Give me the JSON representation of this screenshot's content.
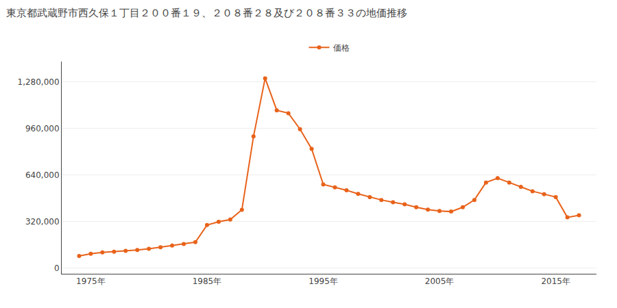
{
  "chart_data": {
    "type": "line",
    "title": "東京都武蔵野市西久保１丁目２００番１９、２０８番２８及び２０８番３３の地価推移",
    "x": [
      1974,
      1975,
      1976,
      1977,
      1978,
      1979,
      1980,
      1981,
      1982,
      1983,
      1984,
      1985,
      1986,
      1987,
      1988,
      1989,
      1990,
      1991,
      1992,
      1993,
      1994,
      1995,
      1996,
      1997,
      1998,
      1999,
      2000,
      2001,
      2002,
      2003,
      2004,
      2005,
      2006,
      2007,
      2008,
      2009,
      2010,
      2011,
      2012,
      2013,
      2014,
      2015,
      2016,
      2017
    ],
    "series": [
      {
        "name": "価格",
        "color": "#e8621a",
        "marker": "circle",
        "values": [
          82000,
          98000,
          107000,
          112000,
          118000,
          124000,
          132000,
          143000,
          154000,
          165000,
          178000,
          295000,
          318000,
          333000,
          400000,
          905000,
          1305000,
          1085000,
          1065000,
          955000,
          820000,
          575000,
          555000,
          535000,
          510000,
          488000,
          468000,
          452000,
          438000,
          418000,
          402000,
          392000,
          388000,
          418000,
          468000,
          588000,
          618000,
          588000,
          558000,
          528000,
          508000,
          488000,
          348000,
          363000
        ]
      }
    ],
    "xlim": [
      1972.5,
      2018.5
    ],
    "xticks": [
      {
        "value": 1975,
        "label": "1975年"
      },
      {
        "value": 1985,
        "label": "1985年"
      },
      {
        "value": 1995,
        "label": "1995年"
      },
      {
        "value": 2005,
        "label": "2005年"
      },
      {
        "value": 2015,
        "label": "2015年"
      }
    ],
    "ylim": [
      -40000,
      1420000
    ],
    "yticks": [
      0,
      {
        "value": 320000,
        "label": "320,000"
      },
      {
        "value": 640000,
        "label": "640,000"
      },
      {
        "value": 960000,
        "label": "960,000"
      },
      {
        "value": 1280000,
        "label": "1,280,000"
      }
    ],
    "grid": true,
    "legend": "top"
  }
}
